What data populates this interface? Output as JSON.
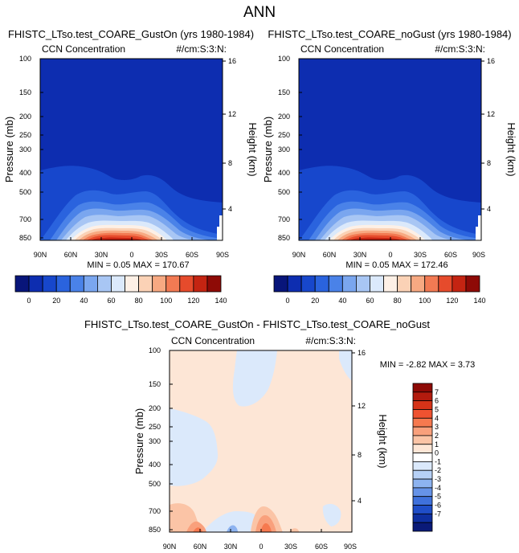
{
  "page": {
    "title": "ANN"
  },
  "chart_data": [
    {
      "type": "heatmap",
      "title": "FHISTC_LTso.test_COARE_GustOn (yrs 1980-1984)",
      "subtitle_left": "CCN Concentration",
      "subtitle_right": "#/cm:S:3:N:",
      "ylabel": "Pressure (mb)",
      "ylabel_right": "Height (km)",
      "x_ticks": [
        "90N",
        "60N",
        "30N",
        "0",
        "30S",
        "60S",
        "90S"
      ],
      "y_ticks": [
        "100",
        "150",
        "200",
        "250",
        "300",
        "400",
        "500",
        "700",
        "850"
      ],
      "y_ticks_right": [
        "16",
        "12",
        "8",
        "4"
      ],
      "stats": "MIN =  0.05  MAX = 170.67",
      "min": 0.05,
      "max": 170.67,
      "colorbar": {
        "labels": [
          "0",
          "20",
          "40",
          "60",
          "80",
          "100",
          "120",
          "140"
        ],
        "colors": [
          "#08157a",
          "#0d2db0",
          "#1747cc",
          "#2a63de",
          "#4a82e8",
          "#7aa6ef",
          "#a8c6f4",
          "#dbe9fb",
          "#fdf0e6",
          "#fbd2b6",
          "#f7a982",
          "#f27a53",
          "#e64b2c",
          "#c42412",
          "#8e0a06"
        ]
      }
    },
    {
      "type": "heatmap",
      "title": "FHISTC_LTso.test_COARE_noGust (yrs 1980-1984)",
      "subtitle_left": "CCN Concentration",
      "subtitle_right": "#/cm:S:3:N:",
      "ylabel": "Pressure (mb)",
      "ylabel_right": "Height (km)",
      "x_ticks": [
        "90N",
        "60N",
        "30N",
        "0",
        "30S",
        "60S",
        "90S"
      ],
      "y_ticks": [
        "100",
        "150",
        "200",
        "250",
        "300",
        "400",
        "500",
        "700",
        "850"
      ],
      "y_ticks_right": [
        "16",
        "12",
        "8",
        "4"
      ],
      "stats": "MIN =  0.05  MAX = 172.46",
      "min": 0.05,
      "max": 172.46
    },
    {
      "type": "heatmap",
      "title": "FHISTC_LTso.test_COARE_GustOn - FHISTC_LTso.test_COARE_noGust",
      "subtitle_left": "CCN Concentration",
      "subtitle_right": "#/cm:S:3:N:",
      "ylabel": "Pressure (mb)",
      "ylabel_right": "Height (km)",
      "x_ticks": [
        "90N",
        "60N",
        "30N",
        "0",
        "30S",
        "60S",
        "90S"
      ],
      "y_ticks": [
        "100",
        "150",
        "200",
        "250",
        "300",
        "400",
        "500",
        "700",
        "850"
      ],
      "y_ticks_right": [
        "16",
        "12",
        "8",
        "4"
      ],
      "stats": "MIN = -2.82  MAX =  3.73",
      "min": -2.82,
      "max": 3.73,
      "colorbar": {
        "labels": [
          "7",
          "6",
          "5",
          "4",
          "3",
          "2",
          "1",
          "0",
          "-1",
          "-2",
          "-3",
          "-4",
          "-5",
          "-6",
          "-7"
        ],
        "colors": [
          "#8e0a06",
          "#b31b0e",
          "#d63318",
          "#ef5230",
          "#f6794f",
          "#f9a07c",
          "#fbc4a6",
          "#fde6d6",
          "#ffffff",
          "#dbe9fb",
          "#b6d0f6",
          "#8db3f0",
          "#6693e8",
          "#3f71dc",
          "#1f4ec8",
          "#0e2fa0",
          "#0a1a78"
        ]
      }
    }
  ]
}
